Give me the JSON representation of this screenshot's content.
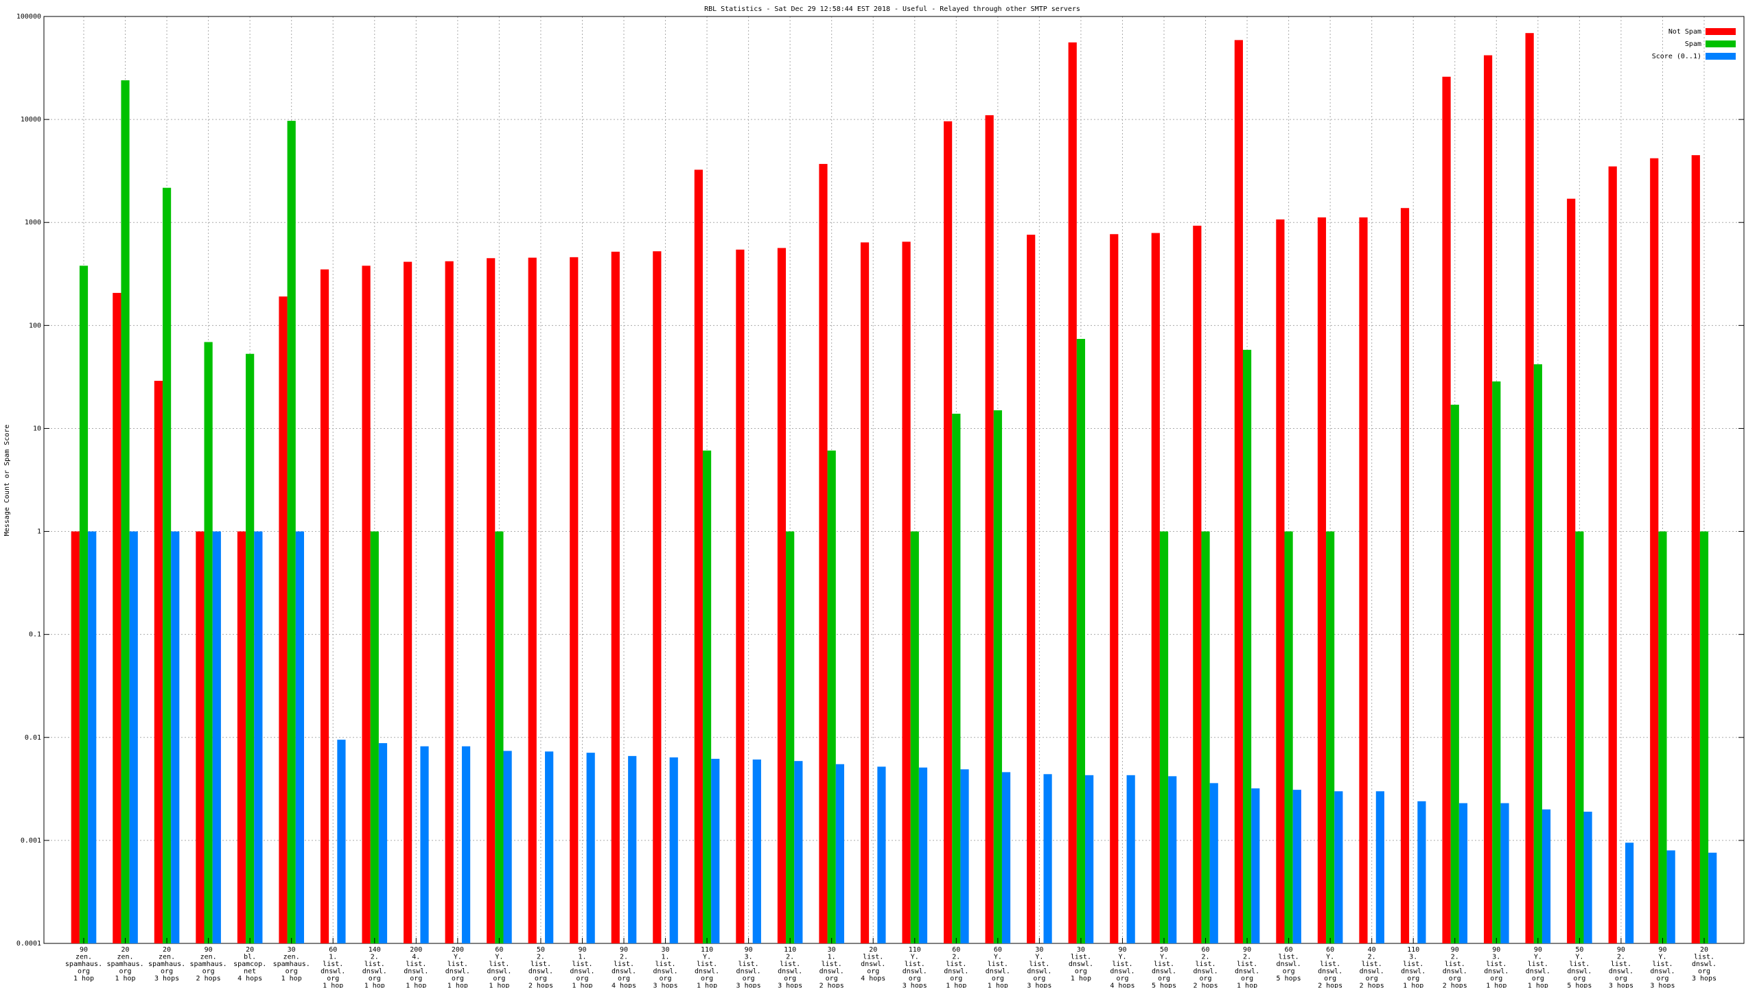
{
  "chart_data": {
    "type": "bar",
    "log_scale": true,
    "grid": true,
    "legend_position": "top-right",
    "title": "RBL Statistics - Sat Dec 29 12:58:44 EST 2018 - Useful - Relayed through other SMTP servers",
    "y_label": "Message Count or Spam Score",
    "ylim": [
      0.0001,
      100000
    ],
    "yticks": [
      0.0001,
      0.001,
      0.01,
      0.1,
      1,
      10,
      100,
      1000,
      10000,
      100000
    ],
    "categories": [
      [
        "90",
        "zen.",
        "spamhaus.",
        "org",
        "1 hop"
      ],
      [
        "20",
        "zen.",
        "spamhaus.",
        "org",
        "1 hop"
      ],
      [
        "20",
        "zen.",
        "spamhaus.",
        "org",
        "3 hops"
      ],
      [
        "90",
        "zen.",
        "spamhaus.",
        "org",
        "2 hops"
      ],
      [
        "20",
        "bl.",
        "spamcop.",
        "net",
        "4 hops"
      ],
      [
        "30",
        "zen.",
        "spamhaus.",
        "org",
        "1 hop"
      ],
      [
        "60",
        "1.",
        "list.",
        "dnswl.",
        "org",
        "1 hop"
      ],
      [
        "140",
        "2.",
        "list.",
        "dnswl.",
        "org",
        "1 hop"
      ],
      [
        "200",
        "4.",
        "list.",
        "dnswl.",
        "org",
        "1 hop"
      ],
      [
        "200",
        "Y.",
        "list.",
        "dnswl.",
        "org",
        "1 hop"
      ],
      [
        "60",
        "Y.",
        "list.",
        "dnswl.",
        "org",
        "1 hop"
      ],
      [
        "50",
        "2.",
        "list.",
        "dnswl.",
        "org",
        "2 hops"
      ],
      [
        "90",
        "1.",
        "list.",
        "dnswl.",
        "org",
        "1 hop"
      ],
      [
        "90",
        "2.",
        "list.",
        "dnswl.",
        "org",
        "4 hops"
      ],
      [
        "30",
        "1.",
        "list.",
        "dnswl.",
        "org",
        "3 hops"
      ],
      [
        "110",
        "Y.",
        "list.",
        "dnswl.",
        "org",
        "1 hop"
      ],
      [
        "90",
        "3.",
        "list.",
        "dnswl.",
        "org",
        "3 hops"
      ],
      [
        "110",
        "2.",
        "list.",
        "dnswl.",
        "org",
        "3 hops"
      ],
      [
        "30",
        "1.",
        "list.",
        "dnswl.",
        "org",
        "2 hops"
      ],
      [
        "20",
        "list.",
        "dnswl.",
        "org",
        "4 hops"
      ],
      [
        "110",
        "Y.",
        "list.",
        "dnswl.",
        "org",
        "3 hops"
      ],
      [
        "60",
        "2.",
        "list.",
        "dnswl.",
        "org",
        "1 hop"
      ],
      [
        "60",
        "Y.",
        "list.",
        "dnswl.",
        "org",
        "1 hop"
      ],
      [
        "30",
        "Y.",
        "list.",
        "dnswl.",
        "org",
        "3 hops"
      ],
      [
        "30",
        "list.",
        "dnswl.",
        "org",
        "1 hop"
      ],
      [
        "90",
        "Y.",
        "list.",
        "dnswl.",
        "org",
        "4 hops"
      ],
      [
        "50",
        "Y.",
        "list.",
        "dnswl.",
        "org",
        "5 hops"
      ],
      [
        "60",
        "2.",
        "list.",
        "dnswl.",
        "org",
        "2 hops"
      ],
      [
        "90",
        "2.",
        "list.",
        "dnswl.",
        "org",
        "1 hop"
      ],
      [
        "60",
        "list.",
        "dnswl.",
        "org",
        "5 hops"
      ],
      [
        "60",
        "Y.",
        "list.",
        "dnswl.",
        "org",
        "2 hops"
      ],
      [
        "40",
        "2.",
        "list.",
        "dnswl.",
        "org",
        "2 hops"
      ],
      [
        "110",
        "3.",
        "list.",
        "dnswl.",
        "org",
        "1 hop"
      ],
      [
        "90",
        "2.",
        "list.",
        "dnswl.",
        "org",
        "2 hops"
      ],
      [
        "90",
        "3.",
        "list.",
        "dnswl.",
        "org",
        "1 hop"
      ],
      [
        "90",
        "Y.",
        "list.",
        "dnswl.",
        "org",
        "1 hop"
      ],
      [
        "50",
        "Y.",
        "list.",
        "dnswl.",
        "org",
        "5 hops"
      ],
      [
        "90",
        "2.",
        "list.",
        "dnswl.",
        "org",
        "3 hops"
      ],
      [
        "90",
        "Y.",
        "list.",
        "dnswl.",
        "org",
        "3 hops"
      ],
      [
        "20",
        "list.",
        "dnswl.",
        "org",
        "3 hops"
      ]
    ],
    "series": [
      {
        "name": "Not Spam",
        "color": "#ff0000",
        "values": [
          1,
          207,
          29,
          1,
          1,
          191,
          350,
          380,
          415,
          420,
          450,
          455,
          460,
          520,
          525,
          3250,
          545,
          565,
          3700,
          640,
          650,
          9600,
          11000,
          760,
          56000,
          770,
          790,
          930,
          59000,
          1070,
          1120,
          1120,
          1380,
          26000,
          42000,
          69000,
          1700,
          3500,
          4200,
          4500
        ]
      },
      {
        "name": "Spam",
        "color": "#00c000",
        "values": [
          380,
          24000,
          2170,
          69,
          53,
          9700,
          null,
          1,
          null,
          null,
          1,
          null,
          null,
          null,
          null,
          6.1,
          null,
          1,
          6.1,
          null,
          1,
          13.9,
          15,
          null,
          74,
          null,
          1,
          1,
          58,
          1,
          1,
          null,
          null,
          17,
          28.6,
          42,
          1,
          null,
          1,
          1
        ]
      },
      {
        "name": "Score (0..1)",
        "color": "#0080ff",
        "values": [
          1,
          1,
          1,
          1,
          1,
          1,
          0.0095,
          0.0088,
          0.0082,
          0.0082,
          0.0074,
          0.0073,
          0.0071,
          0.0066,
          0.0064,
          0.0062,
          0.0061,
          0.0059,
          0.0055,
          0.0052,
          0.0051,
          0.0049,
          0.0046,
          0.0044,
          0.0043,
          0.0043,
          0.0042,
          0.0036,
          0.0032,
          0.0031,
          0.003,
          0.003,
          0.0024,
          0.0023,
          0.0023,
          0.002,
          0.0019,
          0.00095,
          0.0008,
          0.00076
        ]
      }
    ]
  }
}
